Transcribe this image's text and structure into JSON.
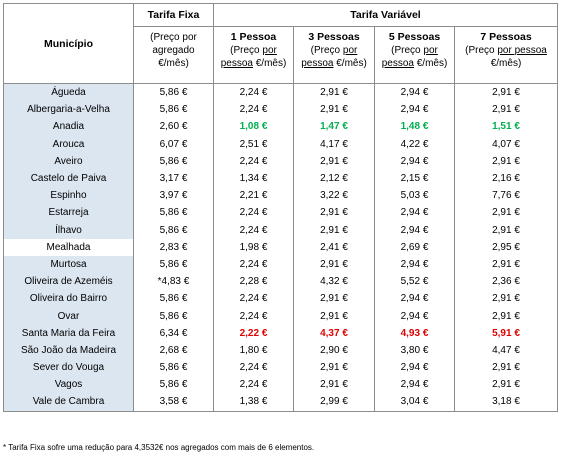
{
  "table": {
    "header": {
      "municipality": "Município",
      "fixed": "Tarifa Fixa",
      "fixed_note": "(Preço por agregado €/mês)",
      "variable": "Tarifa Variável",
      "variable_columns": [
        {
          "title": "1 Pessoa",
          "note_before": "(Preço ",
          "note_underlined": "por pessoa",
          "note_after": " €/mês)"
        },
        {
          "title": "3 Pessoas",
          "note_before": "(Preço ",
          "note_underlined": "por pessoa",
          "note_after": " €/mês)"
        },
        {
          "title": "5 Pessoas",
          "note_before": "(Preço ",
          "note_underlined": "por pessoa",
          "note_after": " €/mês)"
        },
        {
          "title": "7 Pessoas",
          "note_before": "(Preço ",
          "note_underlined": "por pessoa",
          "note_after": " €/mês)"
        }
      ]
    },
    "rows": [
      {
        "cells": [
          "Águeda",
          "5,86 €",
          "2,24 €",
          "2,91 €",
          "2,94 €",
          "2,91 €"
        ],
        "shaded": true,
        "highlight": "none"
      },
      {
        "cells": [
          "Albergaria-a-Velha",
          "5,86 €",
          "2,24 €",
          "2,91 €",
          "2,94 €",
          "2,91 €"
        ],
        "shaded": true,
        "highlight": "none"
      },
      {
        "cells": [
          "Anadia",
          "2,60 €",
          "1,08 €",
          "1,47 €",
          "1,48 €",
          "1,51 €"
        ],
        "shaded": true,
        "highlight": "green"
      },
      {
        "cells": [
          "Arouca",
          "6,07 €",
          "2,51 €",
          "4,17 €",
          "4,22 €",
          "4,07 €"
        ],
        "shaded": true,
        "highlight": "none"
      },
      {
        "cells": [
          "Aveiro",
          "5,86 €",
          "2,24 €",
          "2,91 €",
          "2,94 €",
          "2,91 €"
        ],
        "shaded": true,
        "highlight": "none"
      },
      {
        "cells": [
          "Castelo de Paiva",
          "3,17 €",
          "1,34 €",
          "2,12 €",
          "2,15 €",
          "2,16 €"
        ],
        "shaded": true,
        "highlight": "none"
      },
      {
        "cells": [
          "Espinho",
          "3,97 €",
          "2,21 €",
          "3,22 €",
          "5,03 €",
          "7,76 €"
        ],
        "shaded": true,
        "highlight": "none"
      },
      {
        "cells": [
          "Estarreja",
          "5,86 €",
          "2,24 €",
          "2,91 €",
          "2,94 €",
          "2,91 €"
        ],
        "shaded": true,
        "highlight": "none"
      },
      {
        "cells": [
          "Ílhavo",
          "5,86 €",
          "2,24 €",
          "2,91 €",
          "2,94 €",
          "2,91 €"
        ],
        "shaded": true,
        "highlight": "none"
      },
      {
        "cells": [
          "Mealhada",
          "2,83 €",
          "1,98 €",
          "2,41 €",
          "2,69 €",
          "2,95 €"
        ],
        "shaded": false,
        "highlight": "none"
      },
      {
        "cells": [
          "Murtosa",
          "5,86 €",
          "2,24 €",
          "2,91 €",
          "2,94 €",
          "2,91 €"
        ],
        "shaded": true,
        "highlight": "none"
      },
      {
        "cells": [
          "Oliveira de Azeméis",
          "*4,83 €",
          "2,28 €",
          "4,32 €",
          "5,52 €",
          "2,36 €"
        ],
        "shaded": true,
        "highlight": "none"
      },
      {
        "cells": [
          "Oliveira do Bairro",
          "5,86 €",
          "2,24 €",
          "2,91 €",
          "2,94 €",
          "2,91 €"
        ],
        "shaded": true,
        "highlight": "none"
      },
      {
        "cells": [
          "Ovar",
          "5,86 €",
          "2,24 €",
          "2,91 €",
          "2,94 €",
          "2,91 €"
        ],
        "shaded": true,
        "highlight": "none"
      },
      {
        "cells": [
          "Santa Maria da Feira",
          "6,34 €",
          "2,22 €",
          "4,37 €",
          "4,93 €",
          "5,91 €"
        ],
        "shaded": true,
        "highlight": "red"
      },
      {
        "cells": [
          "São João da Madeira",
          "2,68 €",
          "1,80 €",
          "2,90 €",
          "3,80 €",
          "4,47 €"
        ],
        "shaded": true,
        "highlight": "none"
      },
      {
        "cells": [
          "Sever do Vouga",
          "5,86 €",
          "2,24 €",
          "2,91 €",
          "2,94 €",
          "2,91 €"
        ],
        "shaded": true,
        "highlight": "none"
      },
      {
        "cells": [
          "Vagos",
          "5,86 €",
          "2,24 €",
          "2,91 €",
          "2,94 €",
          "2,91 €"
        ],
        "shaded": true,
        "highlight": "none"
      },
      {
        "cells": [
          "Vale de Cambra",
          "3,58 €",
          "1,38 €",
          "2,99 €",
          "3,04 €",
          "3,18 €"
        ],
        "shaded": true,
        "highlight": "none"
      }
    ],
    "footnote": "* Tarifa Fixa sofre uma redução para 4,3532€ nos agregados com mais de 6 elementos."
  }
}
